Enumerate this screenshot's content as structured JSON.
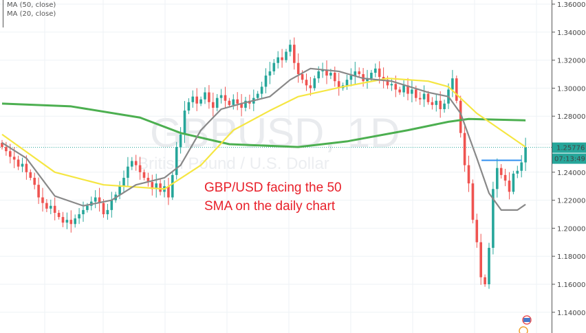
{
  "legend": [
    "MA (50, close)",
    "MA (20, close)"
  ],
  "watermark": {
    "symbol": "GBPUSD, 1D",
    "description": "British Pound / U.S. Dollar"
  },
  "annotation": [
    "GBP/USD facing the 50",
    "SMA on the daily chart"
  ],
  "price_label": {
    "value": "1.25776",
    "countdown": "07:13:49"
  },
  "colors": {
    "up": "#26a69a",
    "down": "#ef5350",
    "ma50": "#f5e642",
    "ma20": "#888888",
    "ma_long": "#4caf50",
    "level": "#2f8ff0",
    "annotation": "#e8202a",
    "last_price": "#26a69a"
  },
  "chart_data": {
    "type": "candlestick",
    "title": "GBPUSD, 1D",
    "ylim": [
      1.13,
      1.365
    ],
    "y_ticks": [
      "1.36000",
      "1.34000",
      "1.32000",
      "1.30000",
      "1.28000",
      "1.26000",
      "1.24000",
      "1.22000",
      "1.20000",
      "1.18000",
      "1.16000",
      "1.14000"
    ],
    "close": [
      1.258,
      1.255,
      1.251,
      1.249,
      1.244,
      1.246,
      1.24,
      1.236,
      1.231,
      1.222,
      1.218,
      1.214,
      1.216,
      1.211,
      1.208,
      1.204,
      1.206,
      1.203,
      1.207,
      1.21,
      1.213,
      1.216,
      1.219,
      1.222,
      1.218,
      1.21,
      1.213,
      1.22,
      1.224,
      1.23,
      1.236,
      1.244,
      1.248,
      1.245,
      1.24,
      1.236,
      1.233,
      1.228,
      1.232,
      1.226,
      1.23,
      1.222,
      1.238,
      1.258,
      1.267,
      1.284,
      1.29,
      1.294,
      1.289,
      1.292,
      1.297,
      1.29,
      1.286,
      1.293,
      1.295,
      1.291,
      1.288,
      1.292,
      1.289,
      1.286,
      1.291,
      1.289,
      1.293,
      1.296,
      1.301,
      1.309,
      1.312,
      1.318,
      1.322,
      1.32,
      1.326,
      1.331,
      1.318,
      1.31,
      1.306,
      1.302,
      1.3,
      1.307,
      1.312,
      1.313,
      1.309,
      1.311,
      1.305,
      1.3,
      1.302,
      1.306,
      1.309,
      1.312,
      1.31,
      1.305,
      1.307,
      1.311,
      1.314,
      1.308,
      1.306,
      1.302,
      1.303,
      1.299,
      1.297,
      1.302,
      1.296,
      1.299,
      1.293,
      1.292,
      1.296,
      1.29,
      1.288,
      1.291,
      1.285,
      1.289,
      1.299,
      1.307,
      1.291,
      1.268,
      1.245,
      1.232,
      1.206,
      1.19,
      1.165,
      1.16,
      1.186,
      1.228,
      1.243,
      1.238,
      1.234,
      1.226,
      1.239,
      1.241,
      1.247,
      1.2578
    ],
    "series": [
      {
        "name": "MA (50, close)",
        "points": [
          [
            0,
            1.267
          ],
          [
            13,
            1.24
          ],
          [
            25,
            1.231
          ],
          [
            40,
            1.228
          ],
          [
            49,
            1.245
          ],
          [
            57,
            1.27
          ],
          [
            66,
            1.284
          ],
          [
            73,
            1.294
          ],
          [
            84,
            1.301
          ],
          [
            95,
            1.307
          ],
          [
            105,
            1.305
          ],
          [
            110,
            1.301
          ],
          [
            117,
            1.282
          ],
          [
            123,
            1.27
          ],
          [
            129,
            1.258
          ]
        ]
      },
      {
        "name": "MA (20, close)",
        "points": [
          [
            0,
            1.261
          ],
          [
            6,
            1.25
          ],
          [
            13,
            1.223
          ],
          [
            20,
            1.216
          ],
          [
            27,
            1.22
          ],
          [
            33,
            1.231
          ],
          [
            40,
            1.236
          ],
          [
            44,
            1.245
          ],
          [
            49,
            1.27
          ],
          [
            54,
            1.285
          ],
          [
            59,
            1.289
          ],
          [
            66,
            1.294
          ],
          [
            71,
            1.306
          ],
          [
            76,
            1.314
          ],
          [
            83,
            1.312
          ],
          [
            89,
            1.307
          ],
          [
            96,
            1.305
          ],
          [
            105,
            1.297
          ],
          [
            110,
            1.294
          ],
          [
            113,
            1.282
          ],
          [
            117,
            1.25
          ],
          [
            120,
            1.225
          ],
          [
            123,
            1.213
          ],
          [
            127,
            1.213
          ],
          [
            129,
            1.217
          ]
        ]
      },
      {
        "points": [
          [
            0,
            1.289
          ],
          [
            17,
            1.287
          ],
          [
            34,
            1.279
          ],
          [
            44,
            1.268
          ],
          [
            56,
            1.26
          ],
          [
            73,
            1.258
          ],
          [
            85,
            1.262
          ],
          [
            100,
            1.27
          ],
          [
            110,
            1.276
          ],
          [
            115,
            1.278
          ],
          [
            129,
            1.277
          ]
        ]
      }
    ],
    "level_line": {
      "price": 1.2485,
      "from": 119,
      "to": 128
    },
    "last_price": 1.25776
  }
}
